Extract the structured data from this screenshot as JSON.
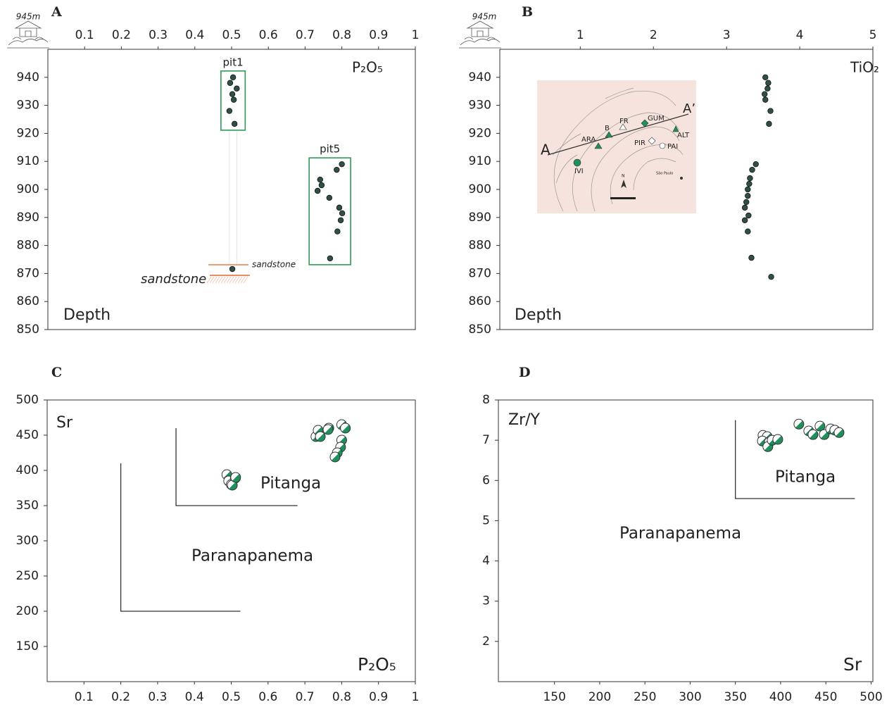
{
  "chart_data": [
    {
      "type": "scatter",
      "label": "A",
      "elevation_label": "945m",
      "x_label": "P₂O₅",
      "y_label": "Depth",
      "xlim": [
        0,
        1
      ],
      "xticks": [
        0.1,
        0.2,
        0.3,
        0.4,
        0.5,
        0.6,
        0.7,
        0.8,
        0.9,
        1
      ],
      "ylim": [
        850,
        950
      ],
      "yticks": [
        850,
        860,
        870,
        880,
        890,
        900,
        910,
        920,
        930,
        940
      ],
      "series": [
        {
          "name": "pit1",
          "color": "#2f4f47",
          "x": [
            0.504,
            0.496,
            0.514,
            0.502,
            0.506,
            0.494,
            0.508
          ],
          "y": [
            940,
            938,
            936,
            934,
            932,
            928,
            923.4
          ]
        },
        {
          "name": "pit5",
          "color": "#2f4f47",
          "x": [
            0.8,
            0.786,
            0.741,
            0.745,
            0.734,
            0.766,
            0.793,
            0.801,
            0.797,
            0.788,
            0.768
          ],
          "y": [
            909,
            907,
            903.5,
            901.5,
            899.5,
            897,
            893.5,
            891.5,
            889,
            885,
            875.4
          ]
        },
        {
          "color": "#2f4f47",
          "x": [
            0.502
          ],
          "y": [
            871.6
          ]
        }
      ],
      "annotations": [
        "sandstone",
        "sandstone"
      ]
    },
    {
      "type": "scatter",
      "label": "B",
      "elevation_label": "945m",
      "x_label": "TiO₂",
      "y_label": "Depth",
      "xlim": [
        -0.1,
        5
      ],
      "xticks": [
        1,
        2,
        3,
        4,
        5
      ],
      "ylim": [
        850,
        950
      ],
      "yticks": [
        850,
        860,
        870,
        880,
        890,
        900,
        910,
        920,
        930,
        940
      ],
      "series": [
        {
          "color": "#2f4f47",
          "x": [
            3.53,
            3.57,
            3.56,
            3.52,
            3.53,
            3.6,
            3.58,
            3.4,
            3.35,
            3.32,
            3.31,
            3.29,
            3.29,
            3.27,
            3.25,
            3.3,
            3.25,
            3.29,
            3.34,
            3.61
          ],
          "y": [
            940,
            938,
            936,
            934,
            932,
            928,
            923.4,
            909,
            907,
            904,
            902,
            900,
            897.7,
            895.5,
            893.5,
            890.7,
            889,
            885,
            875.6,
            868.8
          ]
        }
      ],
      "inset_labels": [
        "A",
        "A’",
        "FR",
        "GUM",
        "B",
        "ARA",
        "PIR",
        "PAI",
        "ALT",
        "IVI",
        "N",
        "São Paulo"
      ]
    },
    {
      "type": "scatter",
      "label": "C",
      "x_label": "P₂O₅",
      "y_label": "Sr",
      "xlim": [
        0,
        1
      ],
      "xticks": [
        0.1,
        0.2,
        0.3,
        0.4,
        0.5,
        0.6,
        0.7,
        0.8,
        0.9,
        1
      ],
      "ylim": [
        100,
        500
      ],
      "yticks": [
        150,
        200,
        250,
        300,
        350,
        400,
        450,
        500
      ],
      "series": [
        {
          "color": "#1f8f5c",
          "x": [
            0.488,
            0.493,
            0.511,
            0.5,
            0.503,
            0.512,
            0.73,
            0.736,
            0.765,
            0.742,
            0.763,
            0.8,
            0.81,
            0.8,
            0.797,
            0.788,
            0.782
          ],
          "y": [
            394,
            385,
            389,
            380,
            379,
            390,
            448,
            457,
            460,
            448,
            458,
            465,
            460,
            443,
            433,
            425,
            419
          ]
        }
      ],
      "regions": [
        {
          "name": "Paranapanema",
          "color": "#9a9a9a",
          "x": [
            0.2,
            0.2,
            0.525
          ],
          "y": [
            410,
            200,
            200
          ]
        },
        {
          "name": "Pitanga",
          "color": "#3a8f76",
          "x": [
            0.35,
            0.35,
            0.68
          ],
          "y": [
            460,
            350,
            350
          ]
        }
      ]
    },
    {
      "type": "scatter",
      "label": "D",
      "x_label": "Sr",
      "y_label": "Zr/Y",
      "xlim": [
        88,
        502
      ],
      "xticks": [
        150,
        200,
        250,
        300,
        350,
        400,
        450,
        500
      ],
      "ylim": [
        1,
        8
      ],
      "yticks": [
        2,
        3,
        4,
        5,
        6,
        7,
        8
      ],
      "series": [
        {
          "color": "#1f8f5c",
          "x": [
            380.5,
            385.2,
            379.8,
            387.5,
            385.9,
            390.7,
            396.9,
            420.2,
            431.1,
            435.8,
            443.5,
            448.2,
            455.3,
            459.9,
            464.6
          ],
          "y": [
            7.12,
            7.09,
            6.98,
            6.95,
            6.84,
            7.0,
            7.02,
            7.4,
            7.23,
            7.14,
            7.35,
            7.14,
            7.28,
            7.25,
            7.19
          ]
        }
      ],
      "regions": [
        {
          "name": "Paranapanema",
          "color": "#9a9a9a"
        },
        {
          "name": "Pitanga",
          "color": "#3a8f76",
          "x": [
            350,
            350,
            482
          ],
          "y": [
            7.5,
            5.55,
            5.55
          ]
        }
      ]
    }
  ]
}
